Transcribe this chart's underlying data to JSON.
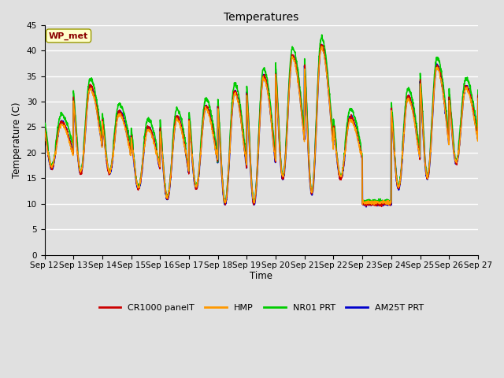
{
  "title": "Temperatures",
  "xlabel": "Time",
  "ylabel": "Temperature (C)",
  "ylim": [
    0,
    45
  ],
  "yticks": [
    0,
    5,
    10,
    15,
    20,
    25,
    30,
    35,
    40,
    45
  ],
  "x_labels": [
    "Sep 12",
    "Sep 13",
    "Sep 14",
    "Sep 15",
    "Sep 16",
    "Sep 17",
    "Sep 18",
    "Sep 19",
    "Sep 20",
    "Sep 21",
    "Sep 22",
    "Sep 23",
    "Sep 24",
    "Sep 25",
    "Sep 26",
    "Sep 27"
  ],
  "site_label": "WP_met",
  "legend_labels": [
    "CR1000 panelT",
    "HMP",
    "NR01 PRT",
    "AM25T PRT"
  ],
  "colors": {
    "CR1000 panelT": "#CC0000",
    "HMP": "#FF9900",
    "NR01 PRT": "#00CC00",
    "AM25T PRT": "#0000CC"
  },
  "background_color": "#E0E0E0",
  "plot_bg_color": "#E0E0E0",
  "grid_color": "#FFFFFF",
  "n_days": 15,
  "ppd": 144,
  "daily_peaks_base": [
    26,
    33,
    28,
    25,
    27,
    29,
    32,
    35,
    39,
    41,
    27,
    10,
    31,
    37,
    33
  ],
  "daily_mins_base": [
    17,
    16,
    16,
    13,
    11,
    13,
    10,
    10,
    15,
    12,
    15,
    10,
    13,
    15,
    18
  ],
  "peak_hour": 0.58,
  "min_hour": 0.25
}
